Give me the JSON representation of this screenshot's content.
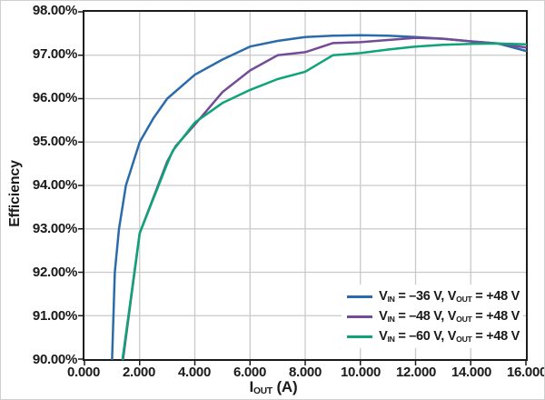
{
  "figure": {
    "y_axis_title": "Efficiency",
    "x_axis_title_parts": {
      "base": "I",
      "sub": "OUT",
      "unit": " (A)"
    },
    "y_tick_labels": [
      "98.00%",
      "97.00%",
      "96.00%",
      "95.00%",
      "94.00%",
      "93.00%",
      "92.00%",
      "91.00%",
      "90.00%"
    ],
    "x_tick_labels": [
      "0.000",
      "2.000",
      "4.000",
      "6.000",
      "8.000",
      "10.000",
      "12.000",
      "14.000",
      "16.000"
    ]
  },
  "legend": {
    "items": [
      {
        "color": "#2a6cab",
        "parts": [
          "V",
          "IN",
          " = –36 V, ",
          "V",
          "OUT",
          " = +48 V"
        ]
      },
      {
        "color": "#744b96",
        "parts": [
          "V",
          "IN",
          " = –48 V, ",
          "V",
          "OUT",
          " = +48 V"
        ]
      },
      {
        "color": "#0ea378",
        "parts": [
          "V",
          "IN",
          " = –60 V, ",
          "V",
          "OUT",
          " = +48 V"
        ]
      }
    ]
  },
  "chart_data": {
    "type": "line",
    "title": "",
    "xlabel": "IOUT (A)",
    "ylabel": "Efficiency",
    "xlim": [
      0,
      16
    ],
    "ylim": [
      90,
      98
    ],
    "x_ticks": [
      0,
      2,
      4,
      6,
      8,
      10,
      12,
      14,
      16
    ],
    "y_ticks": [
      90,
      91,
      92,
      93,
      94,
      95,
      96,
      97,
      98
    ],
    "grid": true,
    "legend_position": "lower right",
    "series": [
      {
        "name": "VIN = –36 V, VOUT = +48 V",
        "color": "#2a6cab",
        "points": [
          [
            1.0,
            90.0
          ],
          [
            1.1,
            92.0
          ],
          [
            1.25,
            93.0
          ],
          [
            1.5,
            94.0
          ],
          [
            2,
            95.0
          ],
          [
            2.5,
            95.55
          ],
          [
            3,
            96.0
          ],
          [
            4,
            96.55
          ],
          [
            5,
            96.9
          ],
          [
            6,
            97.2
          ],
          [
            7,
            97.33
          ],
          [
            8,
            97.42
          ],
          [
            9,
            97.45
          ],
          [
            10,
            97.46
          ],
          [
            11,
            97.45
          ],
          [
            12,
            97.42
          ],
          [
            13,
            97.38
          ],
          [
            14,
            97.32
          ],
          [
            15,
            97.27
          ],
          [
            16,
            97.1
          ]
        ]
      },
      {
        "name": "VIN = –48 V, VOUT = +48 V",
        "color": "#744b96",
        "points": [
          [
            1.4,
            90.0
          ],
          [
            2,
            92.9
          ],
          [
            3,
            94.55
          ],
          [
            3.3,
            94.9
          ],
          [
            4,
            95.4
          ],
          [
            5,
            96.15
          ],
          [
            6,
            96.65
          ],
          [
            7,
            97.0
          ],
          [
            8,
            97.07
          ],
          [
            9,
            97.28
          ],
          [
            10,
            97.3
          ],
          [
            11,
            97.35
          ],
          [
            12,
            97.4
          ],
          [
            13,
            97.38
          ],
          [
            14,
            97.32
          ],
          [
            15,
            97.27
          ],
          [
            16,
            97.18
          ]
        ]
      },
      {
        "name": "VIN = –60 V, VOUT = +48 V",
        "color": "#0ea378",
        "points": [
          [
            1.38,
            90.0
          ],
          [
            2,
            92.9
          ],
          [
            3,
            94.5
          ],
          [
            3.2,
            94.8
          ],
          [
            4,
            95.45
          ],
          [
            5,
            95.9
          ],
          [
            6,
            96.2
          ],
          [
            7,
            96.45
          ],
          [
            8,
            96.62
          ],
          [
            9,
            97.0
          ],
          [
            10,
            97.05
          ],
          [
            11,
            97.13
          ],
          [
            12,
            97.2
          ],
          [
            13,
            97.24
          ],
          [
            14,
            97.26
          ],
          [
            15,
            97.27
          ],
          [
            16,
            97.25
          ]
        ]
      }
    ]
  },
  "style": {
    "grid_color": "#c9c9c9",
    "axis_color": "#1c1c1c",
    "text_color": "#1a1a1a",
    "background": "#ffffff",
    "line_width": 2.5
  }
}
